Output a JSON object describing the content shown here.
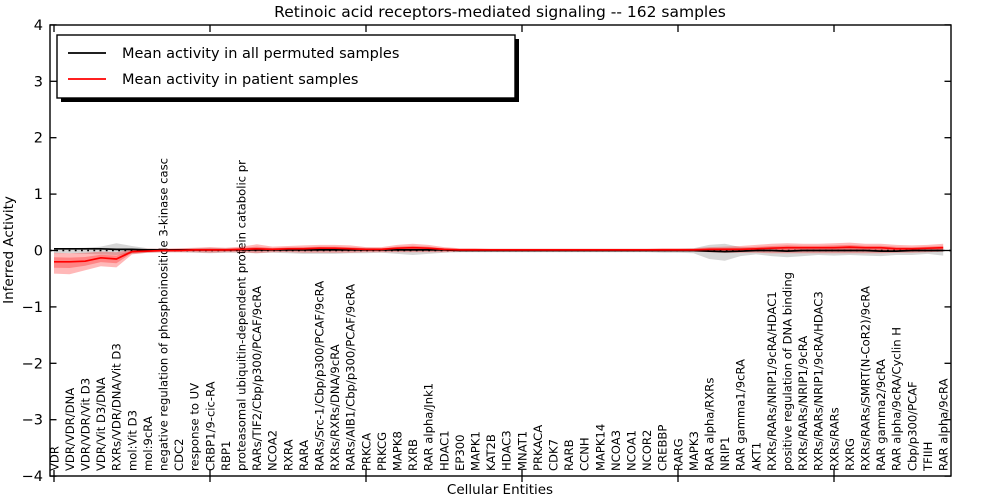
{
  "title": "Retinoic acid receptors-mediated signaling -- 162 samples",
  "legend": {
    "items": [
      {
        "label": "Mean activity in all permuted samples",
        "color": "#000000"
      },
      {
        "label": "Mean activity in patient samples",
        "color": "#ff0000"
      }
    ]
  },
  "colors": {
    "axis": "#000000",
    "zero_line": "#000000",
    "permuted_line": "#000000",
    "patient_line": "#ff0000",
    "permuted_band": "rgba(0,0,0,0.16)",
    "patient_band": "rgba(255,0,0,0.28)",
    "background": "#ffffff"
  },
  "chart_data": {
    "type": "line",
    "title": "Retinoic acid receptors-mediated signaling -- 162 samples",
    "xlabel": "Cellular Entities",
    "ylabel": "Inferred Activity",
    "ylim": [
      -4,
      4
    ],
    "ytick_labels": [
      "4",
      "3",
      "2",
      "1",
      "0",
      "−1",
      "−2",
      "−3",
      "−4"
    ],
    "ytick_values": [
      4,
      3,
      2,
      1,
      0,
      -1,
      -2,
      -3,
      -4
    ],
    "xtick_major_every": 10,
    "grid": false,
    "zero_line_style": "dotted",
    "legend_position": "upper left",
    "inner_band_fraction": 0.5,
    "categories": [
      "VDR",
      "VDR/VDR/DNA",
      "VDR/VDR/Vit D3",
      "VDR/Vit D3/DNA",
      "RXRs/VDR/DNA/Vit D3",
      "mol:Vit D3",
      "mol:9cRA",
      "negative regulation of phosphoinositide 3-kinase casc",
      "CDC2",
      "response to UV",
      "CRBP1/9-cic-RA",
      "RBP1",
      "proteasomal ubiquitin-dependent protein catabolic pr",
      "RARs/TIF2/Cbp/p300/PCAF/9cRA",
      "NCOA2",
      "RXRA",
      "RARA",
      "RARs/Src-1/Cbp/p300/PCAF/9cRA",
      "RXRs/RXRs/DNA/9cRA",
      "RARs/AIB1/Cbp/p300/PCAF/9cRA",
      "PRKCA",
      "PRKCG",
      "MAPK8",
      "RXRB",
      "RAR alpha/Jnk1",
      "HDAC1",
      "EP300",
      "MAPK1",
      "KAT2B",
      "HDAC3",
      "MNAT1",
      "PRKACA",
      "CDK7",
      "RARB",
      "CCNH",
      "MAPK14",
      "NCOA3",
      "NCOA1",
      "NCOR2",
      "CREBBP",
      "RARG",
      "MAPK3",
      "RAR alpha/RXRs",
      "NRIP1",
      "RAR gamma1/9cRA",
      "AKT1",
      "RXRs/RARs/NRIP1/9cRA/HDAC1",
      "positive regulation of DNA binding",
      "RXRs/RARs/NRIP1/9cRA",
      "RXRs/RARs/NRIP1/9cRA/HDAC3",
      "RXRs/RARs",
      "RXRG",
      "RXRs/RARs/SMRT(N-CoR2)/9cRA",
      "RAR gamma2/9cRA",
      "RAR alpha/9cRA/Cyclin H",
      "Cbp/p300/PCAF",
      "TFIIH",
      "RAR alpha/9cRA"
    ],
    "series": [
      {
        "name": "Mean activity in all permuted samples",
        "color": "#000000",
        "values": [
          0.03,
          0.03,
          0.03,
          0.03,
          0.02,
          0.02,
          0.01,
          0.01,
          0.01,
          0.01,
          0.01,
          0.01,
          0.01,
          0.01,
          0.01,
          0.01,
          0.01,
          0.01,
          0.01,
          0.01,
          0.01,
          0.01,
          0.01,
          0.01,
          0.01,
          0.01,
          0,
          0,
          0,
          0,
          0,
          0,
          0,
          0,
          0,
          0,
          0,
          0,
          0,
          0,
          0,
          0,
          -0.01,
          -0.02,
          -0.01,
          0,
          0,
          -0.01,
          0,
          0,
          0,
          0,
          0,
          -0.01,
          -0.01,
          0,
          0,
          0
        ]
      },
      {
        "name": "Mean activity in patient samples",
        "color": "#ff0000",
        "values": [
          -0.2,
          -0.2,
          -0.19,
          -0.13,
          -0.15,
          -0.02,
          -0.01,
          0,
          0,
          0.01,
          0.01,
          0.01,
          0.02,
          0.03,
          0.02,
          0.03,
          0.03,
          0.04,
          0.04,
          0.03,
          0.02,
          0.02,
          0.04,
          0.05,
          0.04,
          0.02,
          0.01,
          0.01,
          0.01,
          0.01,
          0.01,
          0.01,
          0.01,
          0.01,
          0.01,
          0.01,
          0.01,
          0.01,
          0.01,
          0.01,
          0.01,
          0.01,
          0.02,
          0.02,
          0.02,
          0.03,
          0.04,
          0.05,
          0.05,
          0.05,
          0.05,
          0.06,
          0.05,
          0.05,
          0.03,
          0.03,
          0.04,
          0.05
        ]
      }
    ],
    "bands": [
      {
        "name": "permuted-range",
        "color": "rgba(0,0,0,0.16)",
        "upper": [
          0.04,
          0.04,
          0.05,
          0.07,
          0.13,
          0.08,
          0.04,
          0.03,
          0.03,
          0.04,
          0.05,
          0.04,
          0.04,
          0.05,
          0.04,
          0.05,
          0.05,
          0.06,
          0.05,
          0.05,
          0.05,
          0.04,
          0.05,
          0.06,
          0.05,
          0.04,
          0.03,
          0.03,
          0.03,
          0.03,
          0.03,
          0.03,
          0.03,
          0.03,
          0.03,
          0.03,
          0.03,
          0.03,
          0.03,
          0.03,
          0.03,
          0.04,
          0.1,
          0.12,
          0.06,
          0.05,
          0.06,
          0.07,
          0.06,
          0.06,
          0.07,
          0.06,
          0.06,
          0.06,
          0.05,
          0.05,
          0.04,
          0.05
        ],
        "lower": [
          -0.05,
          -0.05,
          -0.06,
          -0.07,
          -0.08,
          -0.06,
          -0.04,
          -0.03,
          -0.03,
          -0.04,
          -0.05,
          -0.04,
          -0.04,
          -0.05,
          -0.04,
          -0.05,
          -0.06,
          -0.06,
          -0.06,
          -0.05,
          -0.05,
          -0.04,
          -0.06,
          -0.08,
          -0.06,
          -0.04,
          -0.03,
          -0.03,
          -0.03,
          -0.03,
          -0.03,
          -0.03,
          -0.03,
          -0.03,
          -0.03,
          -0.03,
          -0.03,
          -0.03,
          -0.03,
          -0.04,
          -0.04,
          -0.05,
          -0.15,
          -0.18,
          -0.1,
          -0.07,
          -0.1,
          -0.12,
          -0.1,
          -0.08,
          -0.09,
          -0.08,
          -0.09,
          -0.1,
          -0.08,
          -0.08,
          -0.06,
          -0.09
        ]
      },
      {
        "name": "patient-range",
        "color": "rgba(255,0,0,0.28)",
        "upper": [
          -0.04,
          -0.05,
          -0.04,
          -0.02,
          -0.03,
          0.02,
          0.03,
          0.03,
          0.04,
          0.05,
          0.06,
          0.05,
          0.07,
          0.11,
          0.07,
          0.08,
          0.09,
          0.1,
          0.1,
          0.09,
          0.06,
          0.06,
          0.1,
          0.12,
          0.1,
          0.06,
          0.04,
          0.04,
          0.03,
          0.03,
          0.03,
          0.03,
          0.03,
          0.03,
          0.03,
          0.03,
          0.03,
          0.03,
          0.03,
          0.04,
          0.04,
          0.04,
          0.06,
          0.07,
          0.08,
          0.1,
          0.12,
          0.13,
          0.12,
          0.12,
          0.13,
          0.14,
          0.12,
          0.12,
          0.1,
          0.09,
          0.1,
          0.12
        ],
        "lower": [
          -0.41,
          -0.42,
          -0.35,
          -0.28,
          -0.3,
          -0.07,
          -0.04,
          -0.03,
          -0.03,
          -0.03,
          -0.04,
          -0.03,
          -0.03,
          -0.05,
          -0.03,
          -0.03,
          -0.04,
          -0.04,
          -0.04,
          -0.04,
          -0.03,
          -0.03,
          -0.03,
          -0.03,
          -0.03,
          -0.03,
          -0.02,
          -0.02,
          -0.02,
          -0.02,
          -0.02,
          -0.02,
          -0.02,
          -0.02,
          -0.02,
          -0.02,
          -0.02,
          -0.02,
          -0.02,
          -0.02,
          -0.02,
          -0.02,
          -0.03,
          -0.04,
          -0.04,
          -0.04,
          -0.05,
          -0.05,
          -0.05,
          -0.05,
          -0.05,
          -0.05,
          -0.05,
          -0.05,
          -0.04,
          -0.04,
          -0.03,
          -0.02
        ]
      }
    ]
  }
}
